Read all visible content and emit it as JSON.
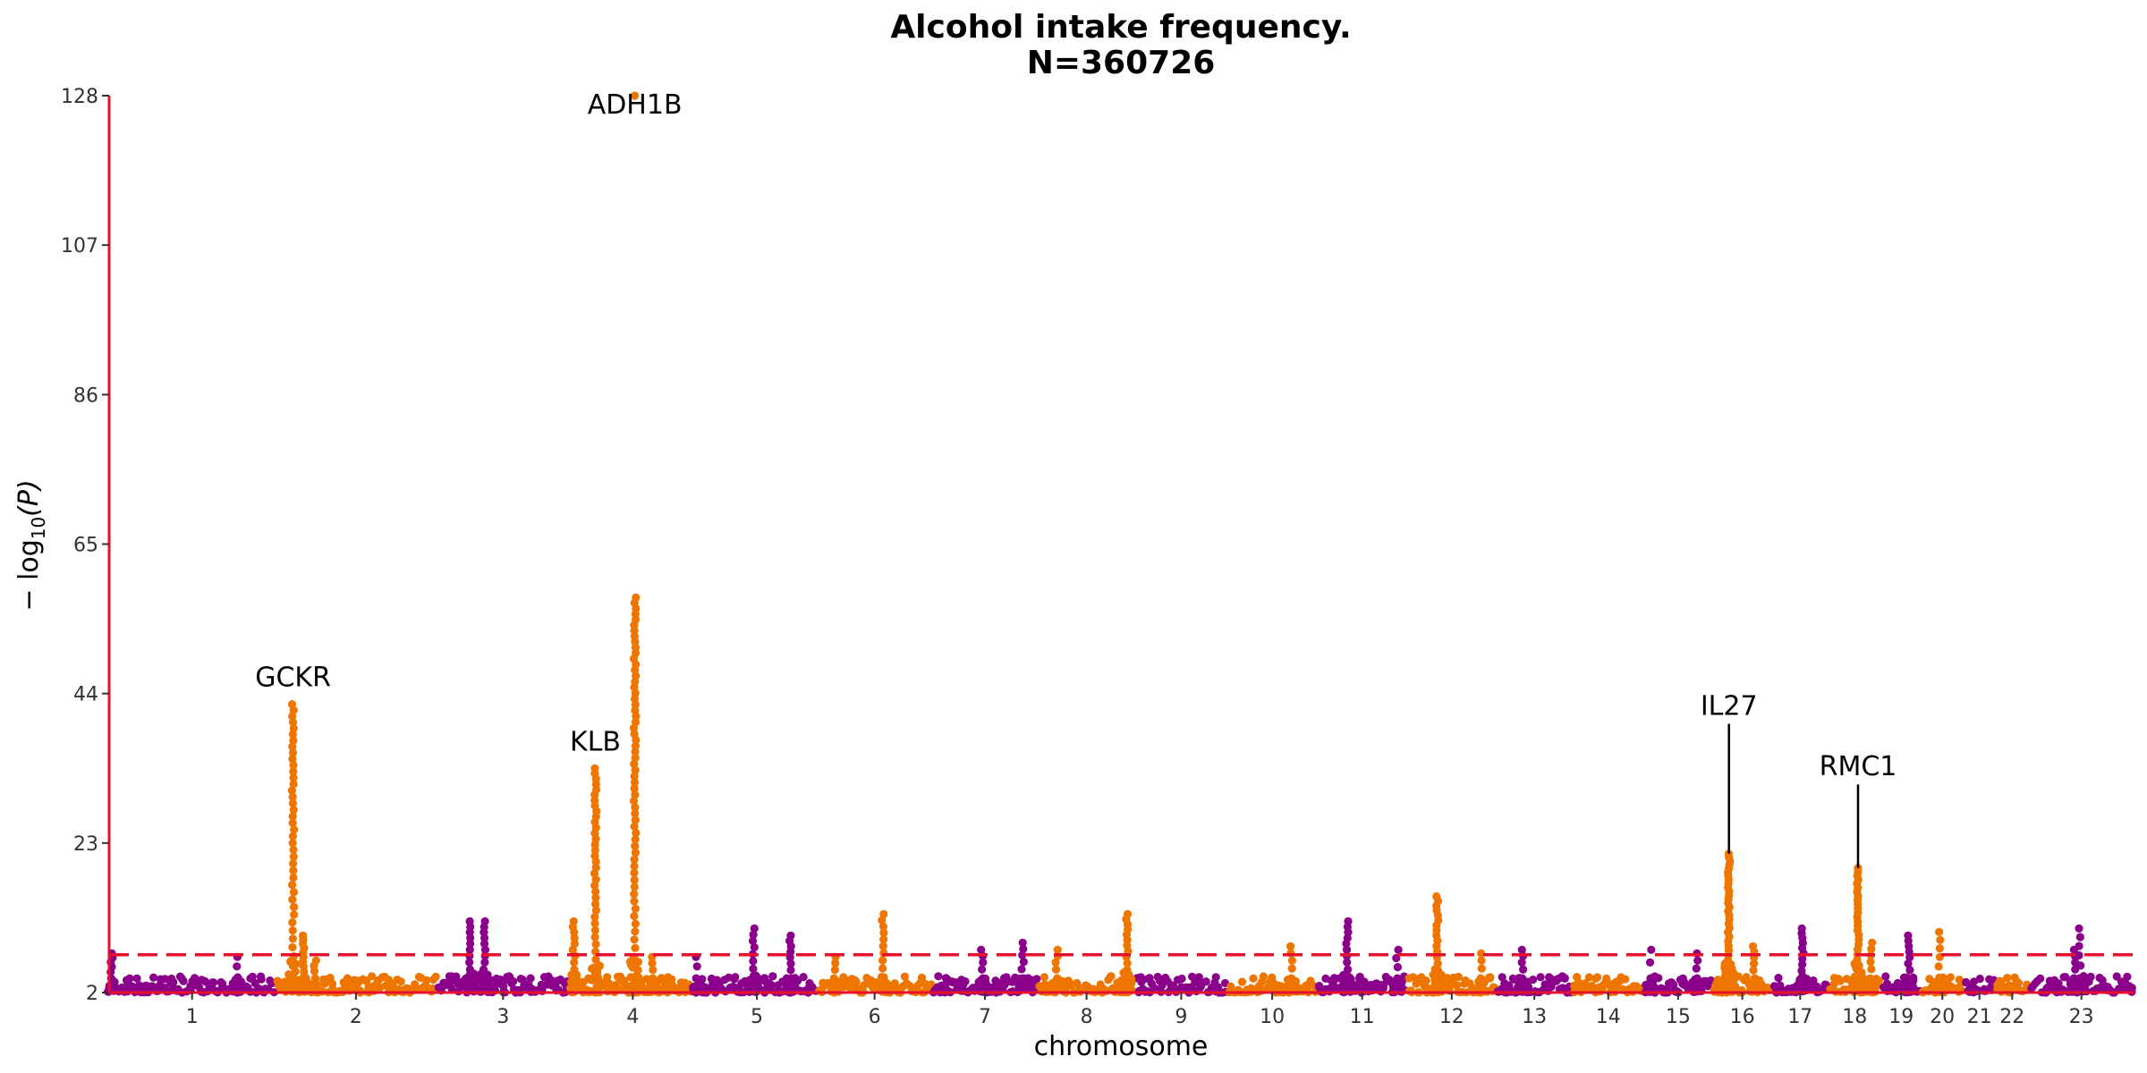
{
  "chart_data": {
    "type": "scatter",
    "subtype": "manhattan",
    "title_line1": "Alcohol intake frequency.",
    "title_line2": "N=360726",
    "xlabel": "chromosome",
    "ylabel": "− log",
    "ylabel_sub": "10",
    "ylabel_var": "(P)",
    "ylim": [
      2,
      128
    ],
    "y_ticks": [
      2,
      23,
      44,
      65,
      86,
      107,
      128
    ],
    "threshold": 7.3,
    "grid": false,
    "colors": {
      "odd_chromosome": "#8B008B",
      "even_chromosome": "#EE7600",
      "axis": "#E8112D",
      "threshold": "#E8112D",
      "label_line": "#000000"
    },
    "chromosomes": [
      {
        "label": "1",
        "start": 0,
        "end": 248
      },
      {
        "label": "2",
        "start": 248,
        "end": 490
      },
      {
        "label": "3",
        "start": 490,
        "end": 688
      },
      {
        "label": "4",
        "start": 688,
        "end": 878
      },
      {
        "label": "5",
        "start": 878,
        "end": 1059
      },
      {
        "label": "6",
        "start": 1059,
        "end": 1230
      },
      {
        "label": "7",
        "start": 1230,
        "end": 1389
      },
      {
        "label": "8",
        "start": 1389,
        "end": 1534
      },
      {
        "label": "9",
        "start": 1534,
        "end": 1672
      },
      {
        "label": "10",
        "start": 1672,
        "end": 1806
      },
      {
        "label": "11",
        "start": 1806,
        "end": 1941
      },
      {
        "label": "12",
        "start": 1941,
        "end": 2074
      },
      {
        "label": "13",
        "start": 2074,
        "end": 2188
      },
      {
        "label": "14",
        "start": 2188,
        "end": 2295
      },
      {
        "label": "15",
        "start": 2295,
        "end": 2397
      },
      {
        "label": "16",
        "start": 2397,
        "end": 2487
      },
      {
        "label": "17",
        "start": 2487,
        "end": 2570
      },
      {
        "label": "18",
        "start": 2570,
        "end": 2650
      },
      {
        "label": "19",
        "start": 2650,
        "end": 2709
      },
      {
        "label": "20",
        "start": 2709,
        "end": 2773
      },
      {
        "label": "21",
        "start": 2773,
        "end": 2820
      },
      {
        "label": "22",
        "start": 2820,
        "end": 2871
      },
      {
        "label": "23",
        "start": 2871,
        "end": 3027
      }
    ],
    "x_range": [
      0,
      3027
    ],
    "peaks": [
      {
        "chrom": "1",
        "pos": 4,
        "max": 7.5,
        "n": 6
      },
      {
        "chrom": "1",
        "pos": 192,
        "max": 7.0,
        "n": 3
      },
      {
        "chrom": "2",
        "pos": 27,
        "max": 42.5,
        "n": 40
      },
      {
        "chrom": "2",
        "pos": 42,
        "max": 10.0,
        "n": 10
      },
      {
        "chrom": "2",
        "pos": 60,
        "max": 6.5,
        "n": 4
      },
      {
        "chrom": "3",
        "pos": 49,
        "max": 12.0,
        "n": 10
      },
      {
        "chrom": "3",
        "pos": 71,
        "max": 12.0,
        "n": 10
      },
      {
        "chrom": "4",
        "pos": 7,
        "max": 12.0,
        "n": 10
      },
      {
        "chrom": "4",
        "pos": 39,
        "max": 33.5,
        "n": 35
      },
      {
        "chrom": "4",
        "pos": 98,
        "max": 57.5,
        "n": 60
      },
      {
        "chrom": "4",
        "pos": 125,
        "max": 7.0,
        "n": 4
      },
      {
        "chrom": "5",
        "pos": 1,
        "max": 7.0,
        "n": 3
      },
      {
        "chrom": "5",
        "pos": 86,
        "max": 11.0,
        "n": 8
      },
      {
        "chrom": "5",
        "pos": 141,
        "max": 10.0,
        "n": 8
      },
      {
        "chrom": "6",
        "pos": 26,
        "max": 7.0,
        "n": 4
      },
      {
        "chrom": "6",
        "pos": 98,
        "max": 13.0,
        "n": 10
      },
      {
        "chrom": "7",
        "pos": 75,
        "max": 8.0,
        "n": 5
      },
      {
        "chrom": "7",
        "pos": 136,
        "max": 9.0,
        "n": 6
      },
      {
        "chrom": "8",
        "pos": 28,
        "max": 8.0,
        "n": 5
      },
      {
        "chrom": "8",
        "pos": 133,
        "max": 13.0,
        "n": 12
      },
      {
        "chrom": "10",
        "pos": 96,
        "max": 8.5,
        "n": 5
      },
      {
        "chrom": "11",
        "pos": 45,
        "max": 12.0,
        "n": 10
      },
      {
        "chrom": "11",
        "pos": 120,
        "max": 8.0,
        "n": 4
      },
      {
        "chrom": "12",
        "pos": 45,
        "max": 15.5,
        "n": 16
      },
      {
        "chrom": "12",
        "pos": 110,
        "max": 7.5,
        "n": 4
      },
      {
        "chrom": "13",
        "pos": 40,
        "max": 8.0,
        "n": 5
      },
      {
        "chrom": "15",
        "pos": 10,
        "max": 8.0,
        "n": 3
      },
      {
        "chrom": "15",
        "pos": 79,
        "max": 7.5,
        "n": 4
      },
      {
        "chrom": "16",
        "pos": 25,
        "max": 21.5,
        "n": 30
      },
      {
        "chrom": "16",
        "pos": 62,
        "max": 8.5,
        "n": 6
      },
      {
        "chrom": "17",
        "pos": 45,
        "max": 11.0,
        "n": 10
      },
      {
        "chrom": "18",
        "pos": 45,
        "max": 19.5,
        "n": 25
      },
      {
        "chrom": "18",
        "pos": 65,
        "max": 9.0,
        "n": 6
      },
      {
        "chrom": "19",
        "pos": 41,
        "max": 10.0,
        "n": 8
      },
      {
        "chrom": "20",
        "pos": 28,
        "max": 10.5,
        "n": 6
      },
      {
        "chrom": "23",
        "pos": 68,
        "max": 8.0,
        "n": 5
      },
      {
        "chrom": "23",
        "pos": 75,
        "max": 11.0,
        "n": 6
      }
    ],
    "special_points": [
      {
        "chrom": "4",
        "pos": 98,
        "y": 128
      }
    ],
    "annotations": [
      {
        "text": "ADH1B",
        "chrom": "4",
        "pos": 98,
        "y": 128,
        "label_y": 125.5,
        "line": false
      },
      {
        "text": "GCKR",
        "chrom": "2",
        "pos": 27,
        "y": 42.5,
        "label_y": 45,
        "line": false
      },
      {
        "text": "KLB",
        "chrom": "4",
        "pos": 39,
        "y": 33.5,
        "label_y": 36,
        "line": false
      },
      {
        "text": "IL27",
        "chrom": "16",
        "pos": 25,
        "y": 21.5,
        "label_y": 41,
        "line": true
      },
      {
        "text": "RMC1",
        "chrom": "18",
        "pos": 45,
        "y": 19.5,
        "label_y": 32.5,
        "line": true
      }
    ]
  }
}
